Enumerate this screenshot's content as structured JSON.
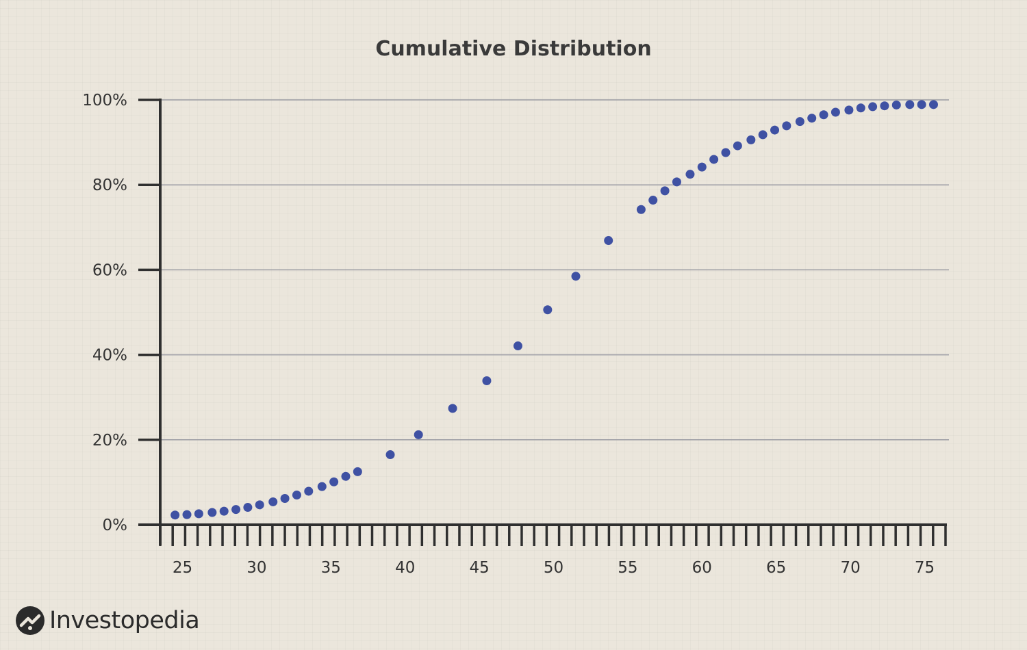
{
  "chart_data": {
    "type": "scatter",
    "title": "Cumulative Distribution",
    "xlabel": "",
    "ylabel": "",
    "xlim": [
      23.5,
      76.5
    ],
    "ylim": [
      0,
      100
    ],
    "x_ticks": [
      25,
      30,
      35,
      40,
      45,
      50,
      55,
      60,
      65,
      70,
      75
    ],
    "y_ticks": [
      0,
      20,
      40,
      60,
      80,
      100
    ],
    "y_tick_labels": [
      "0%",
      "20%",
      "40%",
      "60%",
      "80%",
      "100%"
    ],
    "grid": "horizontal",
    "point_color": "#3f51a3",
    "points": [
      {
        "x": 24.5,
        "y": 2.3
      },
      {
        "x": 25.3,
        "y": 2.4
      },
      {
        "x": 26.1,
        "y": 2.6
      },
      {
        "x": 27.0,
        "y": 2.9
      },
      {
        "x": 27.8,
        "y": 3.2
      },
      {
        "x": 28.6,
        "y": 3.6
      },
      {
        "x": 29.4,
        "y": 4.1
      },
      {
        "x": 30.2,
        "y": 4.7
      },
      {
        "x": 31.1,
        "y": 5.4
      },
      {
        "x": 31.9,
        "y": 6.2
      },
      {
        "x": 32.7,
        "y": 7.0
      },
      {
        "x": 33.5,
        "y": 7.9
      },
      {
        "x": 34.4,
        "y": 9.0
      },
      {
        "x": 35.2,
        "y": 10.1
      },
      {
        "x": 36.0,
        "y": 11.4
      },
      {
        "x": 36.8,
        "y": 12.5
      },
      {
        "x": 39.0,
        "y": 16.5
      },
      {
        "x": 40.9,
        "y": 21.2
      },
      {
        "x": 43.2,
        "y": 27.4
      },
      {
        "x": 45.5,
        "y": 33.9
      },
      {
        "x": 47.6,
        "y": 42.1
      },
      {
        "x": 49.6,
        "y": 50.6
      },
      {
        "x": 51.5,
        "y": 58.5
      },
      {
        "x": 53.7,
        "y": 66.9
      },
      {
        "x": 55.9,
        "y": 74.2
      },
      {
        "x": 56.7,
        "y": 76.4
      },
      {
        "x": 57.5,
        "y": 78.6
      },
      {
        "x": 58.3,
        "y": 80.7
      },
      {
        "x": 59.2,
        "y": 82.5
      },
      {
        "x": 60.0,
        "y": 84.2
      },
      {
        "x": 60.8,
        "y": 86.0
      },
      {
        "x": 61.6,
        "y": 87.6
      },
      {
        "x": 62.4,
        "y": 89.2
      },
      {
        "x": 63.3,
        "y": 90.6
      },
      {
        "x": 64.1,
        "y": 91.8
      },
      {
        "x": 64.9,
        "y": 92.9
      },
      {
        "x": 65.7,
        "y": 93.9
      },
      {
        "x": 66.6,
        "y": 94.9
      },
      {
        "x": 67.4,
        "y": 95.7
      },
      {
        "x": 68.2,
        "y": 96.5
      },
      {
        "x": 69.0,
        "y": 97.1
      },
      {
        "x": 69.9,
        "y": 97.6
      },
      {
        "x": 70.7,
        "y": 98.1
      },
      {
        "x": 71.5,
        "y": 98.4
      },
      {
        "x": 72.3,
        "y": 98.6
      },
      {
        "x": 73.1,
        "y": 98.8
      },
      {
        "x": 74.0,
        "y": 98.9
      },
      {
        "x": 74.8,
        "y": 98.9
      },
      {
        "x": 75.6,
        "y": 98.9
      }
    ]
  },
  "brand": {
    "name": "Investopedia",
    "logo_icon": "investopedia-logo-icon"
  }
}
